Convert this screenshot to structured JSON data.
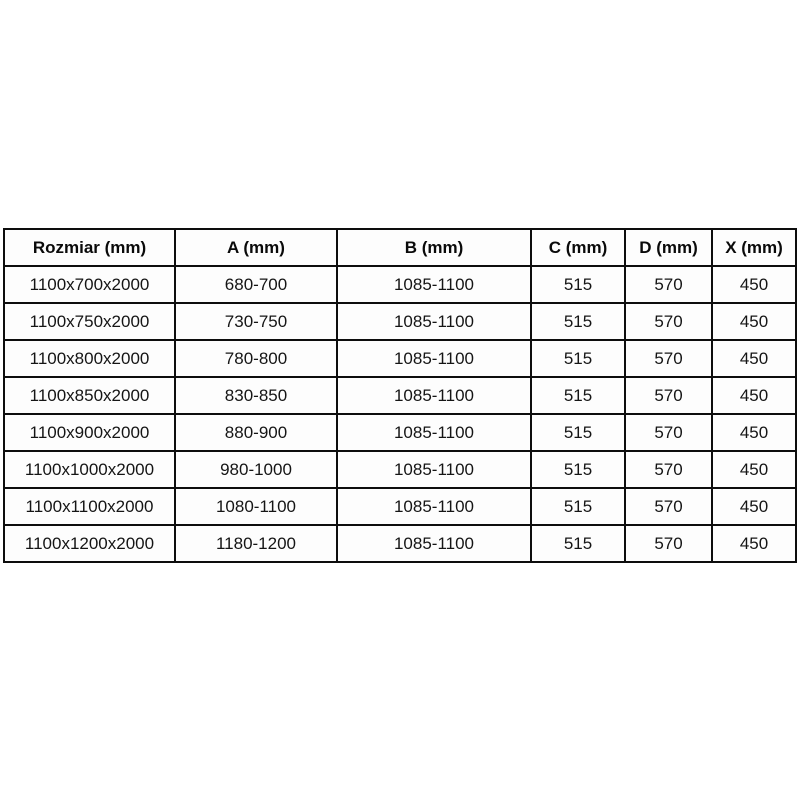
{
  "table": {
    "columns": [
      {
        "key": "rozmiar",
        "label": "Rozmiar (mm)"
      },
      {
        "key": "a",
        "label": "A (mm)"
      },
      {
        "key": "b",
        "label": "B (mm)"
      },
      {
        "key": "c",
        "label": "C (mm)"
      },
      {
        "key": "d",
        "label": "D (mm)"
      },
      {
        "key": "x",
        "label": "X (mm)"
      }
    ],
    "rows": [
      [
        "1100x700x2000",
        "680-700",
        "1085-1100",
        "515",
        "570",
        "450"
      ],
      [
        "1100x750x2000",
        "730-750",
        "1085-1100",
        "515",
        "570",
        "450"
      ],
      [
        "1100x800x2000",
        "780-800",
        "1085-1100",
        "515",
        "570",
        "450"
      ],
      [
        "1100x850x2000",
        "830-850",
        "1085-1100",
        "515",
        "570",
        "450"
      ],
      [
        "1100x900x2000",
        "880-900",
        "1085-1100",
        "515",
        "570",
        "450"
      ],
      [
        "1100x1000x2000",
        "980-1000",
        "1085-1100",
        "515",
        "570",
        "450"
      ],
      [
        "1100x1100x2000",
        "1080-1100",
        "1085-1100",
        "515",
        "570",
        "450"
      ],
      [
        "1100x1200x2000",
        "1180-1200",
        "1085-1100",
        "515",
        "570",
        "450"
      ]
    ],
    "style": {
      "border_color": "#0d0d0d",
      "text_color": "#151515",
      "background": "#ffffff"
    }
  }
}
